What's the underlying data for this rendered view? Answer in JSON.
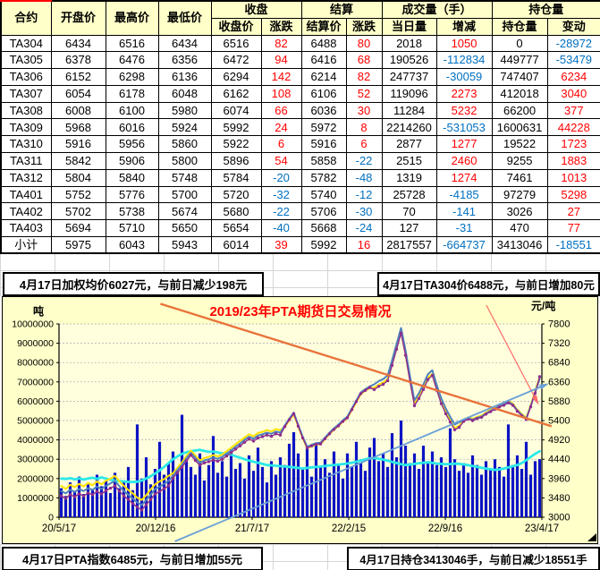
{
  "table": {
    "groups": [
      "收盘",
      "结算",
      "成交量（手）",
      "持仓量"
    ],
    "columns": [
      "合约",
      "开盘价",
      "最高价",
      "最低价",
      "收盘价",
      "涨跌",
      "结算价",
      "涨跌",
      "当日量",
      "增减",
      "持仓量",
      "变动"
    ],
    "change_columns": [
      5,
      7,
      9,
      11
    ],
    "rows": [
      [
        "TA304",
        6434,
        6516,
        6434,
        6516,
        82,
        6488,
        80,
        2018,
        1050,
        0,
        -28972
      ],
      [
        "TA305",
        6378,
        6476,
        6356,
        6472,
        94,
        6416,
        68,
        190526,
        -112834,
        449777,
        -53479
      ],
      [
        "TA306",
        6152,
        6298,
        6136,
        6294,
        142,
        6214,
        82,
        247737,
        -30059,
        747407,
        6234
      ],
      [
        "TA307",
        6054,
        6178,
        6048,
        6162,
        108,
        6106,
        52,
        119096,
        2273,
        412018,
        3040
      ],
      [
        "TA308",
        6008,
        6100,
        5980,
        6074,
        66,
        6036,
        30,
        11284,
        5232,
        66200,
        377
      ],
      [
        "TA309",
        5968,
        6016,
        5924,
        5992,
        24,
        5972,
        8,
        2214260,
        -531053,
        1600631,
        44228
      ],
      [
        "TA310",
        5916,
        5956,
        5860,
        5922,
        6,
        5916,
        6,
        2877,
        1277,
        19522,
        1723
      ],
      [
        "TA311",
        5842,
        5906,
        5800,
        5896,
        54,
        5858,
        -22,
        2515,
        2460,
        9255,
        1883
      ],
      [
        "TA312",
        5804,
        5840,
        5748,
        5784,
        -20,
        5782,
        -48,
        1319,
        1274,
        7461,
        1013
      ],
      [
        "TA401",
        5752,
        5776,
        5700,
        5720,
        -32,
        5740,
        -12,
        25728,
        -4185,
        97279,
        5298
      ],
      [
        "TA402",
        5702,
        5738,
        5674,
        5680,
        -22,
        5706,
        -30,
        70,
        -141,
        3026,
        27
      ],
      [
        "TA403",
        5694,
        5710,
        5650,
        5654,
        -40,
        5668,
        -24,
        127,
        -31,
        470,
        77
      ],
      [
        "小计",
        5975,
        6043,
        5943,
        6014,
        39,
        5992,
        16,
        2817557,
        -664737,
        3413046,
        -18551
      ]
    ]
  },
  "banners": {
    "weighted_avg": "4月17日加权均价6027元，与前日减少198元",
    "ta304": "4月17日TA304价6488元，与前日增加80元",
    "index": "4月17日PTA指数6485元，与前日增加55元",
    "open_interest": "4月17日持仓3413046手，与前日减少18551手"
  },
  "chart_data": {
    "type": "mixed",
    "title": "2019/23年PTA期货日交易情况",
    "colors": {
      "title": "#FF0000",
      "plot_bg": "#FFFFDE",
      "grid": "#A9A9B0"
    },
    "left_axis": {
      "unit": "吨",
      "min": 0,
      "max": 10000000,
      "step": 1000000
    },
    "right_axis": {
      "unit": "元/吨",
      "min": 3000,
      "max": 7800,
      "step": 480
    },
    "x_labels": [
      "20/5/17",
      "20/12/16",
      "21/7/17",
      "22/2/15",
      "22/9/16",
      "23/4/17"
    ],
    "series": [
      {
        "name": "成交量",
        "type": "bar",
        "axis": "left",
        "color": "#0D14C4",
        "values": [
          1500000,
          1100000,
          1800000,
          1300000,
          2100000,
          1200000,
          1700000,
          1400000,
          2200000,
          1600000,
          1900000,
          1250000,
          2300000,
          1500000,
          1800000,
          2600000,
          1400000,
          4800000,
          2000000,
          3100000,
          1700000,
          2500000,
          3900000,
          2200000,
          2800000,
          3400000,
          2400000,
          5300000,
          3000000,
          2600000,
          2200000,
          3300000,
          1900000,
          2700000,
          4200000,
          2300000,
          2900000,
          2100000,
          3500000,
          2500000,
          2800000,
          2000000,
          3200000,
          2400000,
          3600000,
          2600000,
          1800000,
          2900000,
          2200000,
          3100000,
          2700000,
          3800000,
          4400000,
          3300000,
          2500000,
          3700000,
          2100000,
          3800000,
          2600000,
          3000000,
          2300000,
          3400000,
          2700000,
          2000000,
          3300000,
          2600000,
          3900000,
          2800000,
          2400000,
          3600000,
          4100000,
          2900000,
          3300000,
          2600000,
          4350000,
          3100000,
          5000000,
          3700000,
          2800000,
          3300000,
          2500000,
          3700000,
          2900000,
          3400000,
          2700000,
          3100000,
          2600000,
          4600000,
          3000000,
          2400000,
          2800000,
          2300000,
          3200000,
          2700000,
          2200000,
          2900000,
          2500000,
          3000000,
          2600000,
          2100000,
          4800000,
          2700000,
          3200000,
          2500000,
          3900000,
          2200000,
          2900000,
          3000000
        ]
      },
      {
        "name": "持仓量",
        "type": "line",
        "axis": "left",
        "color": "#2BE9E9",
        "width": 2.8,
        "values": [
          2000000,
          1980000,
          2020000,
          1960000,
          2010000,
          1950000,
          2000000,
          2040000,
          1980000,
          2060000,
          2000000,
          1940000,
          1900000,
          1870000,
          1850000,
          1830000,
          1820000,
          1840000,
          1900000,
          2000000,
          2120000,
          2260000,
          2420000,
          2600000,
          2800000,
          3000000,
          3150000,
          3280000,
          3360000,
          3420000,
          3450000,
          3480000,
          3430000,
          3380000,
          3400000,
          3350000,
          3300000,
          3320000,
          3240000,
          3150000,
          3080000,
          3000000,
          2930000,
          2870000,
          2820000,
          2760000,
          2700000,
          2680000,
          2660000,
          2640000,
          2620000,
          2600000,
          2580000,
          2550000,
          2520000,
          2550000,
          2580000,
          2600000,
          2620000,
          2650000,
          2680000,
          2700000,
          2720000,
          2750000,
          2780000,
          2820000,
          2870000,
          2930000,
          2990000,
          3040000,
          3060000,
          3030000,
          2980000,
          2920000,
          2860000,
          2800000,
          2740000,
          2700000,
          2720000,
          2760000,
          2790000,
          2820000,
          2840000,
          2810000,
          2780000,
          2760000,
          2740000,
          2750000,
          2770000,
          2760000,
          2730000,
          2690000,
          2650000,
          2600000,
          2560000,
          2520000,
          2480000,
          2450000,
          2470000,
          2520000,
          2580000,
          2640000,
          2700000,
          2800000,
          2950000,
          3120000,
          3280000,
          3413046
        ]
      },
      {
        "name": "PTA指数",
        "type": "line",
        "axis": "right",
        "color": "#FFE200",
        "width": 2,
        "values": [
          3780,
          3700,
          3810,
          3745,
          3830,
          3765,
          3850,
          3795,
          3890,
          3815,
          3910,
          3955,
          4030,
          3890,
          3780,
          3675,
          3590,
          3485,
          3430,
          3545,
          3690,
          3815,
          3890,
          3945,
          4030,
          4090,
          4230,
          4360,
          4520,
          4655,
          4530,
          4410,
          4470,
          4500,
          4545,
          4510,
          4560,
          4640,
          4725,
          4810,
          4895,
          4980,
          5060,
          5010,
          5090,
          5120,
          5165,
          5130,
          5190,
          5160,
          5240,
          5405,
          5555,
          5250,
          4960,
          4715,
          4760,
          4800,
          4815,
          4940,
          5065,
          5170,
          5265,
          5370,
          5460,
          5660,
          5855,
          6055,
          6140,
          6205,
          6215,
          6290,
          6345,
          6430,
          6810,
          7205,
          7610,
          7060,
          6410,
          5815,
          5990,
          6210,
          6460,
          6560,
          6195,
          5860,
          5615,
          5400,
          5215,
          5270,
          5425,
          5480,
          5445,
          5490,
          5525,
          5600,
          5665,
          5720,
          5785,
          5825,
          5880,
          5825,
          5670,
          5565,
          5470,
          5785,
          6130,
          6485
        ]
      },
      {
        "name": "收盘价",
        "type": "line",
        "axis": "right",
        "color": "#4F81BD",
        "width": 2,
        "values": [
          3650,
          3590,
          3680,
          3630,
          3700,
          3650,
          3720,
          3680,
          3760,
          3700,
          3780,
          3840,
          3900,
          3770,
          3650,
          3560,
          3460,
          3370,
          3300,
          3430,
          3560,
          3700,
          3760,
          3830,
          3900,
          4030,
          4170,
          4300,
          4460,
          4600,
          4470,
          4350,
          4410,
          4440,
          4480,
          4450,
          4500,
          4580,
          4660,
          4750,
          4830,
          4920,
          5000,
          4950,
          5030,
          5060,
          5100,
          5070,
          5130,
          5100,
          5280,
          5450,
          5600,
          5290,
          5000,
          4750,
          4800,
          4840,
          4850,
          4980,
          5100,
          5210,
          5300,
          5410,
          5500,
          5700,
          5900,
          6100,
          6180,
          6250,
          6300,
          6380,
          6430,
          6520,
          6900,
          7300,
          7700,
          7150,
          6500,
          5900,
          6080,
          6300,
          6550,
          6650,
          6280,
          5950,
          5700,
          5490,
          5300,
          5360,
          5400,
          5460,
          5420,
          5470,
          5500,
          5580,
          5640,
          5700,
          5760,
          5800,
          5860,
          5800,
          5650,
          5540,
          5450,
          5760,
          6100,
          6440
        ]
      },
      {
        "name": "结算价",
        "type": "line",
        "axis": "right",
        "color": "#8E2D8E",
        "width": 1.4,
        "markers": true,
        "values": [
          3530,
          3470,
          3560,
          3510,
          3580,
          3530,
          3600,
          3560,
          3640,
          3580,
          3660,
          3720,
          3780,
          3650,
          3530,
          3440,
          3340,
          3250,
          3180,
          3310,
          3440,
          3580,
          3640,
          3710,
          3780,
          3970,
          4110,
          4240,
          4400,
          4540,
          4410,
          4290,
          4350,
          4380,
          4420,
          4390,
          4440,
          4520,
          4600,
          4690,
          4770,
          4860,
          4940,
          4890,
          4970,
          5000,
          5040,
          5010,
          5070,
          5040,
          5250,
          5420,
          5570,
          5260,
          4970,
          4720,
          4770,
          4810,
          4820,
          4950,
          5070,
          5180,
          5270,
          5380,
          5470,
          5670,
          5870,
          6070,
          6150,
          6220,
          6170,
          6250,
          6300,
          6390,
          6770,
          7170,
          7570,
          7020,
          6370,
          5770,
          5950,
          6170,
          6420,
          6520,
          6150,
          5820,
          5570,
          5360,
          5170,
          5230,
          5380,
          5440,
          5400,
          5450,
          5480,
          5560,
          5620,
          5680,
          5740,
          5780,
          5840,
          5780,
          5630,
          5520,
          5430,
          5740,
          6080,
          6490
        ]
      }
    ],
    "trend_lines": [
      {
        "name": "downtrend-major",
        "color": "#E8743B",
        "width": 2.4,
        "x1": 0.21,
        "v1": 8300,
        "x2": 1.02,
        "v2": 5260,
        "arrow": false
      },
      {
        "name": "downtrend-recent",
        "color": "#FF6A6A",
        "width": 1.2,
        "x1": 0.885,
        "v1": 8267,
        "x2": 0.991,
        "v2": 5845,
        "arrow": true
      },
      {
        "name": "uptrend",
        "color": "#6A9FD8",
        "width": 1.8,
        "x1": 0.24,
        "v1": 2400,
        "x2": 1.01,
        "v2": 6300,
        "arrow": true
      }
    ]
  }
}
